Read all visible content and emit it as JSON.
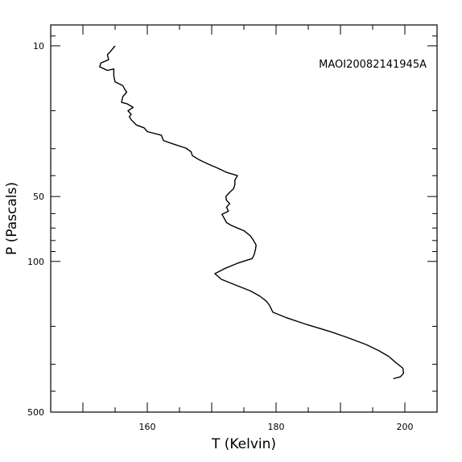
{
  "chart_data": {
    "type": "line",
    "title": "",
    "annotation": "MAOI20082141945A",
    "xlabel": "T (Kelvin)",
    "ylabel": "P (Pascals)",
    "xlim": [
      145,
      205
    ],
    "ylim": [
      8,
      500
    ],
    "yscale": "log",
    "yreverse": true,
    "grid": false,
    "x_ticks": [
      160,
      180,
      200
    ],
    "x_ticklabels": [
      "160",
      "180",
      "200"
    ],
    "y_ticks": [
      10,
      50,
      100,
      500
    ],
    "y_ticklabels": [
      "10",
      "50",
      "100",
      "500"
    ],
    "series": [
      {
        "values": [
          [
            155.0,
            10.0
          ],
          [
            154.3,
            10.6
          ],
          [
            153.8,
            11.0
          ],
          [
            154.0,
            11.6
          ],
          [
            152.8,
            12.0
          ],
          [
            152.6,
            12.5
          ],
          [
            153.8,
            13.0
          ],
          [
            154.8,
            12.8
          ],
          [
            154.8,
            13.8
          ],
          [
            155.0,
            14.7
          ],
          [
            156.2,
            15.3
          ],
          [
            156.5,
            15.9
          ],
          [
            156.8,
            16.4
          ],
          [
            156.2,
            17.2
          ],
          [
            156.0,
            18.3
          ],
          [
            156.9,
            18.6
          ],
          [
            157.8,
            19.3
          ],
          [
            157.0,
            20.0
          ],
          [
            157.5,
            20.8
          ],
          [
            157.2,
            21.3
          ],
          [
            157.5,
            22.0
          ],
          [
            157.8,
            22.5
          ],
          [
            158.3,
            23.3
          ],
          [
            159.5,
            24.0
          ],
          [
            160.0,
            25.0
          ],
          [
            162.2,
            26.0
          ],
          [
            162.5,
            27.5
          ],
          [
            164.0,
            28.5
          ],
          [
            166.0,
            29.8
          ],
          [
            166.8,
            31.0
          ],
          [
            167.0,
            32.3
          ],
          [
            168.0,
            33.7
          ],
          [
            169.5,
            35.4
          ],
          [
            171.0,
            37.0
          ],
          [
            172.3,
            38.6
          ],
          [
            174.0,
            40.0
          ],
          [
            173.6,
            42.0
          ],
          [
            173.6,
            44.0
          ],
          [
            173.4,
            46.0
          ],
          [
            172.8,
            47.8
          ],
          [
            172.2,
            50.0
          ],
          [
            172.3,
            52.0
          ],
          [
            172.8,
            54.0
          ],
          [
            172.3,
            56.0
          ],
          [
            172.6,
            58.5
          ],
          [
            171.6,
            60.5
          ],
          [
            172.0,
            63.5
          ],
          [
            172.3,
            66.0
          ],
          [
            173.0,
            68.0
          ],
          [
            174.0,
            70.0
          ],
          [
            175.0,
            72.0
          ],
          [
            176.0,
            76.0
          ],
          [
            176.5,
            80.0
          ],
          [
            176.9,
            84.0
          ],
          [
            176.8,
            88.0
          ],
          [
            176.6,
            93.0
          ],
          [
            176.3,
            97.0
          ],
          [
            174.0,
            102.0
          ],
          [
            172.0,
            108.0
          ],
          [
            170.5,
            114.0
          ],
          [
            171.5,
            121.0
          ],
          [
            173.5,
            128.0
          ],
          [
            176.0,
            137.0
          ],
          [
            177.5,
            145.0
          ],
          [
            178.5,
            153.0
          ],
          [
            179.0,
            160.0
          ],
          [
            179.5,
            172.0
          ],
          [
            181.5,
            182.0
          ],
          [
            184.5,
            195.0
          ],
          [
            188.5,
            212.0
          ],
          [
            191.0,
            225.0
          ],
          [
            194.0,
            243.0
          ],
          [
            196.0,
            260.0
          ],
          [
            197.5,
            276.0
          ],
          [
            198.5,
            293.0
          ],
          [
            199.7,
            313.0
          ],
          [
            199.8,
            330.0
          ],
          [
            199.3,
            343.0
          ],
          [
            198.2,
            350.0
          ]
        ]
      }
    ]
  }
}
